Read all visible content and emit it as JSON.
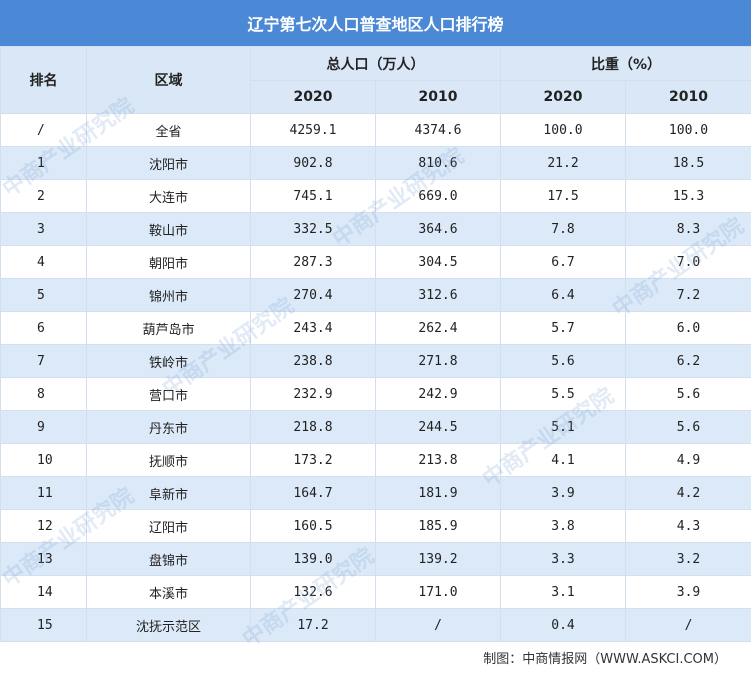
{
  "title": "辽宁第七次人口普查地区人口排行榜",
  "headers": {
    "rank": "排名",
    "region": "区域",
    "population_group": "总人口（万人）",
    "share_group": "比重（%）",
    "year_2020": "2020",
    "year_2010": "2010"
  },
  "rows": [
    {
      "rank": "/",
      "region": "全省",
      "pop2020": "4259.1",
      "pop2010": "4374.6",
      "share2020": "100.0",
      "share2010": "100.0"
    },
    {
      "rank": "1",
      "region": "沈阳市",
      "pop2020": "902.8",
      "pop2010": "810.6",
      "share2020": "21.2",
      "share2010": "18.5"
    },
    {
      "rank": "2",
      "region": "大连市",
      "pop2020": "745.1",
      "pop2010": "669.0",
      "share2020": "17.5",
      "share2010": "15.3"
    },
    {
      "rank": "3",
      "region": "鞍山市",
      "pop2020": "332.5",
      "pop2010": "364.6",
      "share2020": "7.8",
      "share2010": "8.3"
    },
    {
      "rank": "4",
      "region": "朝阳市",
      "pop2020": "287.3",
      "pop2010": "304.5",
      "share2020": "6.7",
      "share2010": "7.0"
    },
    {
      "rank": "5",
      "region": "锦州市",
      "pop2020": "270.4",
      "pop2010": "312.6",
      "share2020": "6.4",
      "share2010": "7.2"
    },
    {
      "rank": "6",
      "region": "葫芦岛市",
      "pop2020": "243.4",
      "pop2010": "262.4",
      "share2020": "5.7",
      "share2010": "6.0"
    },
    {
      "rank": "7",
      "region": "铁岭市",
      "pop2020": "238.8",
      "pop2010": "271.8",
      "share2020": "5.6",
      "share2010": "6.2"
    },
    {
      "rank": "8",
      "region": "营口市",
      "pop2020": "232.9",
      "pop2010": "242.9",
      "share2020": "5.5",
      "share2010": "5.6"
    },
    {
      "rank": "9",
      "region": "丹东市",
      "pop2020": "218.8",
      "pop2010": "244.5",
      "share2020": "5.1",
      "share2010": "5.6"
    },
    {
      "rank": "10",
      "region": "抚顺市",
      "pop2020": "173.2",
      "pop2010": "213.8",
      "share2020": "4.1",
      "share2010": "4.9"
    },
    {
      "rank": "11",
      "region": "阜新市",
      "pop2020": "164.7",
      "pop2010": "181.9",
      "share2020": "3.9",
      "share2010": "4.2"
    },
    {
      "rank": "12",
      "region": "辽阳市",
      "pop2020": "160.5",
      "pop2010": "185.9",
      "share2020": "3.8",
      "share2010": "4.3"
    },
    {
      "rank": "13",
      "region": "盘锦市",
      "pop2020": "139.0",
      "pop2010": "139.2",
      "share2020": "3.3",
      "share2010": "3.2"
    },
    {
      "rank": "14",
      "region": "本溪市",
      "pop2020": "132.6",
      "pop2010": "171.0",
      "share2020": "3.1",
      "share2010": "3.9"
    },
    {
      "rank": "15",
      "region": "沈抚示范区",
      "pop2020": "17.2",
      "pop2010": "/",
      "share2020": "0.4",
      "share2010": "/"
    }
  ],
  "footer": "制图：中商情报网（WWW.ASKCI.COM）",
  "watermark": "中商产业研究院",
  "colors": {
    "title_bg": "#4b89d6",
    "header_bg": "#d9e7f7",
    "stripe": "#dce9f8"
  }
}
